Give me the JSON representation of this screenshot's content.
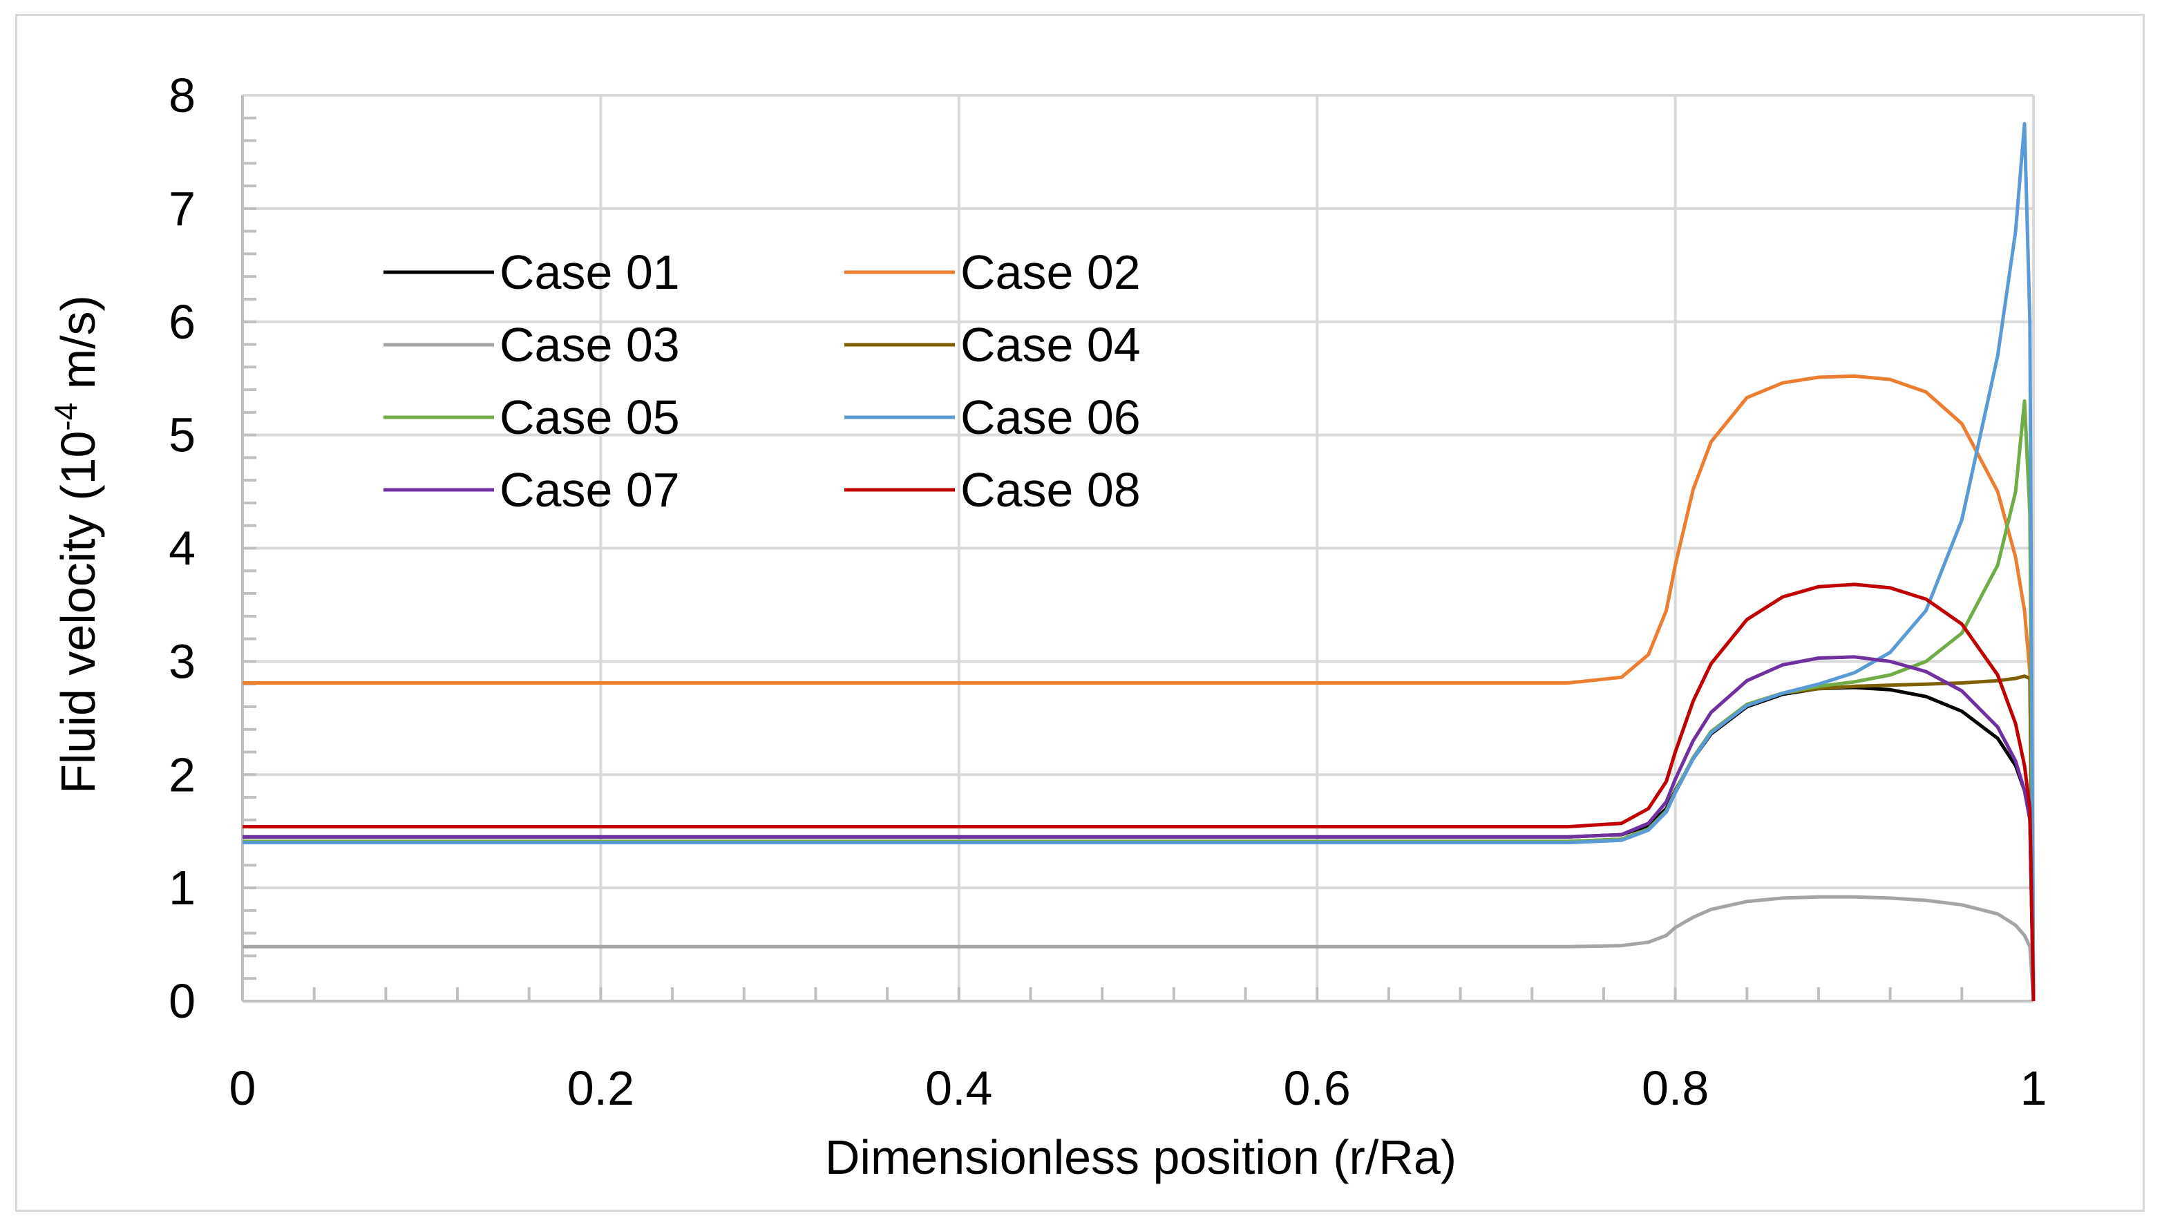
{
  "chart_data": {
    "type": "line",
    "title": "",
    "xlabel": "Dimensionless position (r/Ra)",
    "ylabel_prefix": "Fluid velocity (10",
    "ylabel_exponent": "-4",
    "ylabel_suffix": " m/s)",
    "xlim": [
      0,
      1
    ],
    "ylim": [
      0,
      8
    ],
    "x_ticks": [
      0,
      0.2,
      0.4,
      0.6,
      0.8,
      1
    ],
    "x_tick_labels": [
      "0",
      "0.2",
      "0.4",
      "0.6",
      "0.8",
      "1"
    ],
    "y_ticks": [
      0,
      1,
      2,
      3,
      4,
      5,
      6,
      7,
      8
    ],
    "y_tick_labels": [
      "0",
      "1",
      "2",
      "3",
      "4",
      "5",
      "6",
      "7",
      "8"
    ],
    "x_minor_step": 0.04,
    "y_minor_step": 0.2,
    "grid": true,
    "legend_position": "upper-left",
    "series": [
      {
        "name": "Case 01",
        "color": "#000000",
        "x": [
          0,
          0.74,
          0.77,
          0.785,
          0.795,
          0.8,
          0.81,
          0.82,
          0.84,
          0.86,
          0.88,
          0.9,
          0.92,
          0.94,
          0.96,
          0.98,
          0.99,
          0.995,
          0.998,
          1.0
        ],
        "y": [
          1.45,
          1.45,
          1.47,
          1.55,
          1.7,
          1.86,
          2.14,
          2.36,
          2.6,
          2.71,
          2.76,
          2.77,
          2.75,
          2.69,
          2.56,
          2.32,
          2.08,
          1.86,
          1.62,
          0.0
        ]
      },
      {
        "name": "Case 02",
        "color": "#ED7D31",
        "x": [
          0,
          0.74,
          0.77,
          0.785,
          0.795,
          0.8,
          0.81,
          0.82,
          0.84,
          0.86,
          0.88,
          0.9,
          0.92,
          0.94,
          0.96,
          0.98,
          0.99,
          0.995,
          0.998,
          1.0
        ],
        "y": [
          2.81,
          2.81,
          2.86,
          3.06,
          3.45,
          3.85,
          4.52,
          4.94,
          5.33,
          5.46,
          5.51,
          5.52,
          5.49,
          5.38,
          5.1,
          4.5,
          3.92,
          3.45,
          2.9,
          0.0
        ]
      },
      {
        "name": "Case 03",
        "color": "#A5A5A5",
        "x": [
          0,
          0.74,
          0.77,
          0.785,
          0.795,
          0.8,
          0.81,
          0.82,
          0.84,
          0.86,
          0.88,
          0.9,
          0.92,
          0.94,
          0.96,
          0.98,
          0.99,
          0.995,
          0.998,
          1.0
        ],
        "y": [
          0.48,
          0.48,
          0.49,
          0.52,
          0.58,
          0.65,
          0.74,
          0.81,
          0.88,
          0.91,
          0.92,
          0.92,
          0.91,
          0.89,
          0.85,
          0.77,
          0.67,
          0.58,
          0.48,
          0.0
        ]
      },
      {
        "name": "Case 04",
        "color": "#7F6000",
        "x": [
          0,
          0.74,
          0.77,
          0.785,
          0.795,
          0.8,
          0.81,
          0.82,
          0.84,
          0.86,
          0.88,
          0.9,
          0.92,
          0.94,
          0.96,
          0.98,
          0.99,
          0.995,
          0.998,
          1.0
        ],
        "y": [
          1.41,
          1.41,
          1.43,
          1.52,
          1.68,
          1.85,
          2.15,
          2.38,
          2.62,
          2.72,
          2.76,
          2.78,
          2.79,
          2.8,
          2.81,
          2.83,
          2.85,
          2.87,
          2.85,
          0.0
        ]
      },
      {
        "name": "Case 05",
        "color": "#70AD47",
        "x": [
          0,
          0.74,
          0.77,
          0.785,
          0.795,
          0.8,
          0.81,
          0.82,
          0.84,
          0.86,
          0.88,
          0.9,
          0.92,
          0.94,
          0.96,
          0.98,
          0.99,
          0.995,
          0.998,
          1.0
        ],
        "y": [
          1.41,
          1.41,
          1.43,
          1.52,
          1.68,
          1.85,
          2.15,
          2.38,
          2.62,
          2.72,
          2.78,
          2.82,
          2.88,
          3.0,
          3.25,
          3.85,
          4.5,
          5.3,
          4.3,
          0.0
        ]
      },
      {
        "name": "Case 06",
        "color": "#5B9BD5",
        "x": [
          0,
          0.74,
          0.77,
          0.785,
          0.795,
          0.8,
          0.81,
          0.82,
          0.84,
          0.86,
          0.88,
          0.9,
          0.92,
          0.94,
          0.96,
          0.98,
          0.99,
          0.995,
          0.998,
          1.0
        ],
        "y": [
          1.4,
          1.4,
          1.42,
          1.51,
          1.67,
          1.84,
          2.14,
          2.37,
          2.61,
          2.72,
          2.8,
          2.9,
          3.08,
          3.45,
          4.25,
          5.7,
          6.8,
          7.75,
          6.0,
          0.0
        ]
      },
      {
        "name": "Case 07",
        "color": "#7030A0",
        "x": [
          0,
          0.74,
          0.77,
          0.785,
          0.795,
          0.8,
          0.81,
          0.82,
          0.84,
          0.86,
          0.88,
          0.9,
          0.92,
          0.94,
          0.96,
          0.98,
          0.99,
          0.995,
          0.998,
          1.0
        ],
        "y": [
          1.45,
          1.45,
          1.47,
          1.57,
          1.76,
          1.96,
          2.3,
          2.55,
          2.83,
          2.97,
          3.03,
          3.04,
          3.0,
          2.91,
          2.74,
          2.42,
          2.12,
          1.86,
          1.6,
          0.0
        ]
      },
      {
        "name": "Case 08",
        "color": "#C00000",
        "x": [
          0,
          0.74,
          0.77,
          0.785,
          0.795,
          0.8,
          0.81,
          0.82,
          0.84,
          0.86,
          0.88,
          0.9,
          0.92,
          0.94,
          0.96,
          0.98,
          0.99,
          0.995,
          0.998,
          1.0
        ],
        "y": [
          1.54,
          1.54,
          1.57,
          1.7,
          1.94,
          2.2,
          2.65,
          2.98,
          3.37,
          3.57,
          3.66,
          3.68,
          3.65,
          3.55,
          3.33,
          2.88,
          2.45,
          2.08,
          1.7,
          0.0
        ]
      }
    ]
  }
}
